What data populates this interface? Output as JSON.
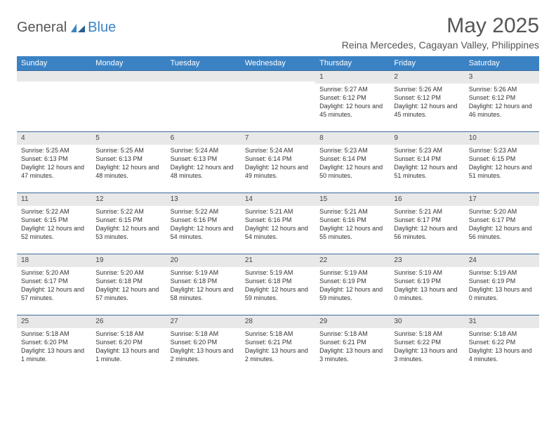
{
  "brand": {
    "part1": "General",
    "part2": "Blue"
  },
  "title": "May 2025",
  "location": "Reina Mercedes, Cagayan Valley, Philippines",
  "colors": {
    "header_bg": "#3b82c4",
    "header_text": "#ffffff",
    "daynum_bg": "#e8e8e8",
    "border": "#3b6a9a",
    "text": "#333333",
    "title_text": "#555555"
  },
  "daysOfWeek": [
    "Sunday",
    "Monday",
    "Tuesday",
    "Wednesday",
    "Thursday",
    "Friday",
    "Saturday"
  ],
  "weeks": [
    [
      {
        "n": "",
        "sr": "",
        "ss": "",
        "dl": ""
      },
      {
        "n": "",
        "sr": "",
        "ss": "",
        "dl": ""
      },
      {
        "n": "",
        "sr": "",
        "ss": "",
        "dl": ""
      },
      {
        "n": "",
        "sr": "",
        "ss": "",
        "dl": ""
      },
      {
        "n": "1",
        "sr": "Sunrise: 5:27 AM",
        "ss": "Sunset: 6:12 PM",
        "dl": "Daylight: 12 hours and 45 minutes."
      },
      {
        "n": "2",
        "sr": "Sunrise: 5:26 AM",
        "ss": "Sunset: 6:12 PM",
        "dl": "Daylight: 12 hours and 45 minutes."
      },
      {
        "n": "3",
        "sr": "Sunrise: 5:26 AM",
        "ss": "Sunset: 6:12 PM",
        "dl": "Daylight: 12 hours and 46 minutes."
      }
    ],
    [
      {
        "n": "4",
        "sr": "Sunrise: 5:25 AM",
        "ss": "Sunset: 6:13 PM",
        "dl": "Daylight: 12 hours and 47 minutes."
      },
      {
        "n": "5",
        "sr": "Sunrise: 5:25 AM",
        "ss": "Sunset: 6:13 PM",
        "dl": "Daylight: 12 hours and 48 minutes."
      },
      {
        "n": "6",
        "sr": "Sunrise: 5:24 AM",
        "ss": "Sunset: 6:13 PM",
        "dl": "Daylight: 12 hours and 48 minutes."
      },
      {
        "n": "7",
        "sr": "Sunrise: 5:24 AM",
        "ss": "Sunset: 6:14 PM",
        "dl": "Daylight: 12 hours and 49 minutes."
      },
      {
        "n": "8",
        "sr": "Sunrise: 5:23 AM",
        "ss": "Sunset: 6:14 PM",
        "dl": "Daylight: 12 hours and 50 minutes."
      },
      {
        "n": "9",
        "sr": "Sunrise: 5:23 AM",
        "ss": "Sunset: 6:14 PM",
        "dl": "Daylight: 12 hours and 51 minutes."
      },
      {
        "n": "10",
        "sr": "Sunrise: 5:23 AM",
        "ss": "Sunset: 6:15 PM",
        "dl": "Daylight: 12 hours and 51 minutes."
      }
    ],
    [
      {
        "n": "11",
        "sr": "Sunrise: 5:22 AM",
        "ss": "Sunset: 6:15 PM",
        "dl": "Daylight: 12 hours and 52 minutes."
      },
      {
        "n": "12",
        "sr": "Sunrise: 5:22 AM",
        "ss": "Sunset: 6:15 PM",
        "dl": "Daylight: 12 hours and 53 minutes."
      },
      {
        "n": "13",
        "sr": "Sunrise: 5:22 AM",
        "ss": "Sunset: 6:16 PM",
        "dl": "Daylight: 12 hours and 54 minutes."
      },
      {
        "n": "14",
        "sr": "Sunrise: 5:21 AM",
        "ss": "Sunset: 6:16 PM",
        "dl": "Daylight: 12 hours and 54 minutes."
      },
      {
        "n": "15",
        "sr": "Sunrise: 5:21 AM",
        "ss": "Sunset: 6:16 PM",
        "dl": "Daylight: 12 hours and 55 minutes."
      },
      {
        "n": "16",
        "sr": "Sunrise: 5:21 AM",
        "ss": "Sunset: 6:17 PM",
        "dl": "Daylight: 12 hours and 56 minutes."
      },
      {
        "n": "17",
        "sr": "Sunrise: 5:20 AM",
        "ss": "Sunset: 6:17 PM",
        "dl": "Daylight: 12 hours and 56 minutes."
      }
    ],
    [
      {
        "n": "18",
        "sr": "Sunrise: 5:20 AM",
        "ss": "Sunset: 6:17 PM",
        "dl": "Daylight: 12 hours and 57 minutes."
      },
      {
        "n": "19",
        "sr": "Sunrise: 5:20 AM",
        "ss": "Sunset: 6:18 PM",
        "dl": "Daylight: 12 hours and 57 minutes."
      },
      {
        "n": "20",
        "sr": "Sunrise: 5:19 AM",
        "ss": "Sunset: 6:18 PM",
        "dl": "Daylight: 12 hours and 58 minutes."
      },
      {
        "n": "21",
        "sr": "Sunrise: 5:19 AM",
        "ss": "Sunset: 6:18 PM",
        "dl": "Daylight: 12 hours and 59 minutes."
      },
      {
        "n": "22",
        "sr": "Sunrise: 5:19 AM",
        "ss": "Sunset: 6:19 PM",
        "dl": "Daylight: 12 hours and 59 minutes."
      },
      {
        "n": "23",
        "sr": "Sunrise: 5:19 AM",
        "ss": "Sunset: 6:19 PM",
        "dl": "Daylight: 13 hours and 0 minutes."
      },
      {
        "n": "24",
        "sr": "Sunrise: 5:19 AM",
        "ss": "Sunset: 6:19 PM",
        "dl": "Daylight: 13 hours and 0 minutes."
      }
    ],
    [
      {
        "n": "25",
        "sr": "Sunrise: 5:18 AM",
        "ss": "Sunset: 6:20 PM",
        "dl": "Daylight: 13 hours and 1 minute."
      },
      {
        "n": "26",
        "sr": "Sunrise: 5:18 AM",
        "ss": "Sunset: 6:20 PM",
        "dl": "Daylight: 13 hours and 1 minute."
      },
      {
        "n": "27",
        "sr": "Sunrise: 5:18 AM",
        "ss": "Sunset: 6:20 PM",
        "dl": "Daylight: 13 hours and 2 minutes."
      },
      {
        "n": "28",
        "sr": "Sunrise: 5:18 AM",
        "ss": "Sunset: 6:21 PM",
        "dl": "Daylight: 13 hours and 2 minutes."
      },
      {
        "n": "29",
        "sr": "Sunrise: 5:18 AM",
        "ss": "Sunset: 6:21 PM",
        "dl": "Daylight: 13 hours and 3 minutes."
      },
      {
        "n": "30",
        "sr": "Sunrise: 5:18 AM",
        "ss": "Sunset: 6:22 PM",
        "dl": "Daylight: 13 hours and 3 minutes."
      },
      {
        "n": "31",
        "sr": "Sunrise: 5:18 AM",
        "ss": "Sunset: 6:22 PM",
        "dl": "Daylight: 13 hours and 4 minutes."
      }
    ]
  ]
}
